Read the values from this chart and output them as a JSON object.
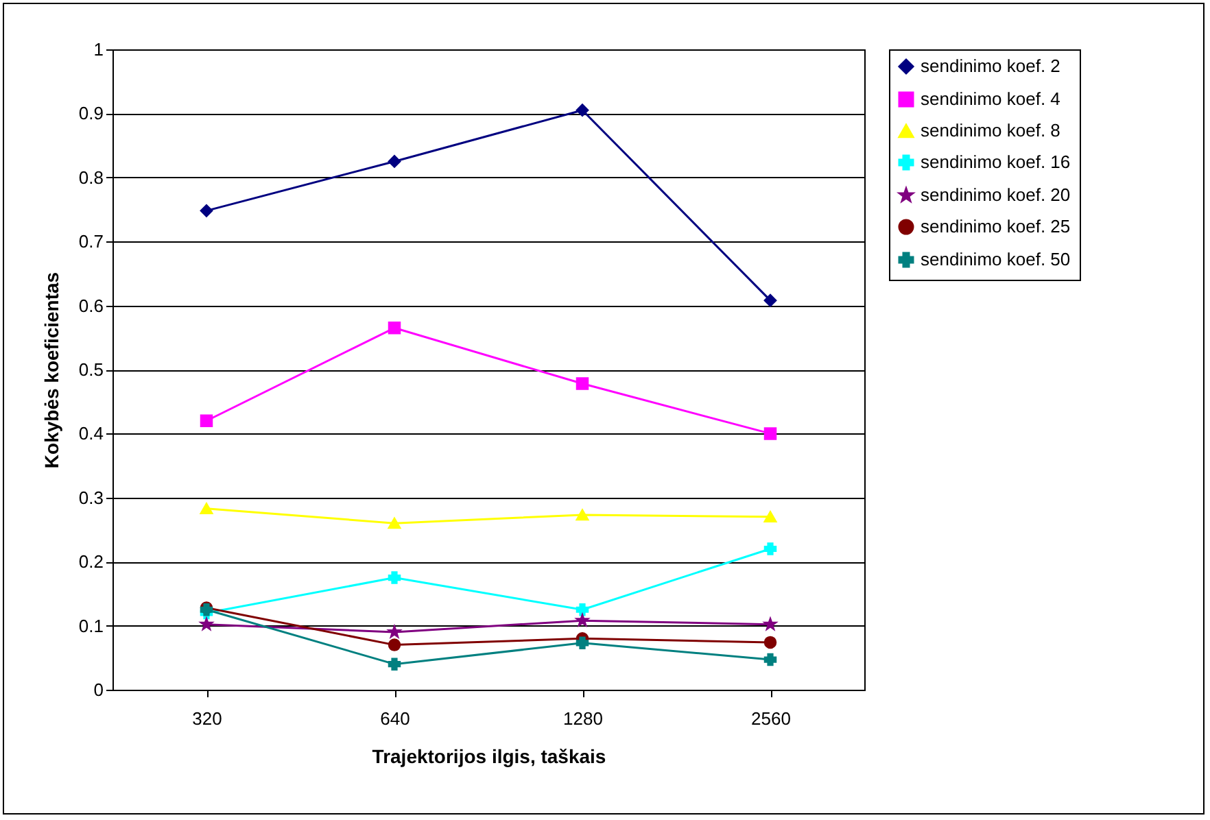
{
  "chart_data": {
    "type": "line",
    "xlabel": "Trajektorijos ilgis, taškais",
    "ylabel": "Kokybės koeficientas",
    "categories": [
      "320",
      "640",
      "1280",
      "2560"
    ],
    "ylim": [
      0,
      1
    ],
    "yticks": [
      0,
      0.1,
      0.2,
      0.3,
      0.4,
      0.5,
      0.6,
      0.7,
      0.8,
      0.9,
      1
    ],
    "grid": "y",
    "legend": "right",
    "line_style": "solid",
    "series": [
      {
        "name": "sendinimo koef. 2",
        "color": "#000080",
        "marker": "diamond",
        "values": [
          0.748,
          0.825,
          0.905,
          0.608
        ]
      },
      {
        "name": "sendinimo koef. 4",
        "color": "#ff00ff",
        "marker": "square",
        "values": [
          0.42,
          0.565,
          0.478,
          0.4
        ]
      },
      {
        "name": "sendinimo koef. 8",
        "color": "#ffff00",
        "marker": "triangle",
        "values": [
          0.283,
          0.26,
          0.273,
          0.27
        ]
      },
      {
        "name": "sendinimo koef. 16",
        "color": "#00ffff",
        "marker": "cross",
        "values": [
          0.12,
          0.175,
          0.125,
          0.22
        ]
      },
      {
        "name": "sendinimo koef. 20",
        "color": "#800080",
        "marker": "star",
        "values": [
          0.102,
          0.09,
          0.108,
          0.102
        ]
      },
      {
        "name": "sendinimo koef. 25",
        "color": "#800000",
        "marker": "circle",
        "values": [
          0.128,
          0.07,
          0.08,
          0.074
        ]
      },
      {
        "name": "sendinimo koef. 50",
        "color": "#008080",
        "marker": "cross",
        "values": [
          0.125,
          0.04,
          0.073,
          0.047
        ]
      }
    ]
  }
}
